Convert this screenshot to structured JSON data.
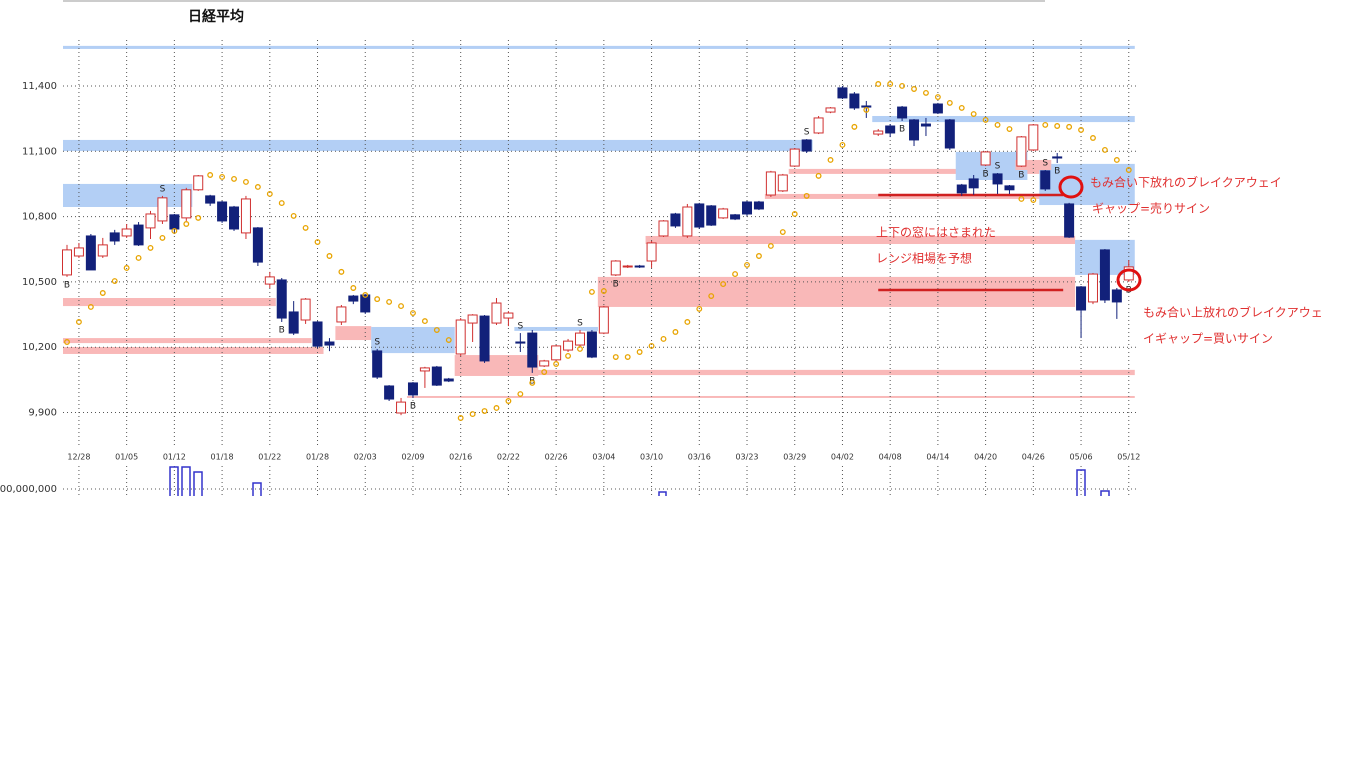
{
  "chart_data": {
    "type": "candlestick",
    "title": "日経平均",
    "categories": [
      null,
      "12/28",
      null,
      null,
      null,
      "01/05",
      null,
      null,
      null,
      "01/12",
      null,
      null,
      null,
      "01/18",
      null,
      null,
      null,
      "01/22",
      null,
      null,
      null,
      "01/28",
      null,
      null,
      null,
      "02/03",
      null,
      null,
      null,
      "02/09",
      null,
      null,
      null,
      "02/16",
      null,
      null,
      null,
      "02/22",
      null,
      null,
      null,
      "02/26",
      null,
      null,
      null,
      "03/04",
      null,
      null,
      null,
      "03/10",
      null,
      null,
      null,
      "03/16",
      null,
      null,
      null,
      "03/23",
      null,
      null,
      null,
      "03/29",
      null,
      null,
      null,
      "04/02",
      null,
      null,
      null,
      "04/08",
      null,
      null,
      null,
      "04/14",
      null,
      null,
      null,
      "04/20",
      null,
      null,
      null,
      "04/26",
      null,
      null,
      null,
      "05/06",
      null,
      null,
      null,
      "05/12"
    ],
    "open": [
      10532,
      10619,
      10711,
      10619,
      10725,
      10711,
      10761,
      10748,
      10780,
      10808,
      10794,
      10923,
      10895,
      10867,
      10844,
      10725,
      10748,
      10490,
      10509,
      10362,
      10325,
      10316,
      10224,
      10316,
      10435,
      10440,
      10183,
      10022,
      9898,
      10036,
      10091,
      10109,
      10054,
      10169,
      10311,
      10343,
      10311,
      10334,
      10224,
      10265,
      10114,
      10142,
      10187,
      10210,
      10270,
      10265,
      10532,
      10569,
      10573,
      10596,
      10711,
      10812,
      10711,
      10858,
      10849,
      10794,
      10808,
      10867,
      10867,
      10899,
      10918,
      11032,
      11152,
      11184,
      11280,
      11391,
      11363,
      11308,
      11179,
      11216,
      11303,
      11244,
      11225,
      11317,
      11244,
      10945,
      10973,
      11037,
      10996,
      10941,
      11032,
      11106,
      11010,
      11074,
      10858,
      10477,
      10408,
      10647,
      10463,
      10509
    ],
    "high": [
      10670,
      10679,
      10720,
      10702,
      10739,
      10766,
      10775,
      10826,
      10895,
      10812,
      10932,
      10991,
      10900,
      10872,
      10849,
      10895,
      10752,
      10546,
      10518,
      10412,
      10426,
      10320,
      10242,
      10394,
      10440,
      10444,
      10192,
      10026,
      9967,
      10040,
      10110,
      10114,
      10059,
      10334,
      10352,
      10348,
      10426,
      10366,
      10265,
      10279,
      10142,
      10210,
      10238,
      10279,
      10279,
      10390,
      10600,
      10578,
      10578,
      10688,
      10784,
      10817,
      10858,
      10863,
      10853,
      10840,
      10812,
      10872,
      10872,
      11010,
      10996,
      11115,
      11156,
      11262,
      11303,
      11400,
      11372,
      11331,
      11202,
      11225,
      11308,
      11248,
      11253,
      11322,
      11248,
      10950,
      10991,
      11101,
      11000,
      10945,
      11170,
      11225,
      11014,
      11092,
      10863,
      10481,
      10541,
      10651,
      10472,
      10600
    ],
    "low": [
      10523,
      10610,
      10555,
      10610,
      10670,
      10702,
      10665,
      10697,
      10766,
      10720,
      10780,
      10918,
      10849,
      10771,
      10734,
      10697,
      10573,
      10472,
      10316,
      10256,
      10307,
      10196,
      10182,
      10302,
      10398,
      10353,
      10054,
      9953,
      9888,
      9967,
      10013,
      10022,
      10040,
      10160,
      10224,
      10128,
      10302,
      10297,
      10178,
      10082,
      10109,
      10137,
      10178,
      10201,
      10150,
      10260,
      10527,
      10564,
      10564,
      10564,
      10706,
      10748,
      10702,
      10743,
      10757,
      10789,
      10784,
      10803,
      10830,
      10890,
      10913,
      11028,
      11092,
      11179,
      11275,
      11340,
      11290,
      11253,
      11170,
      11165,
      11239,
      11124,
      11170,
      11271,
      11106,
      10895,
      10900,
      11032,
      10904,
      10904,
      11028,
      11101,
      10918,
      11046,
      10702,
      10242,
      10398,
      10403,
      10330,
      10500
    ],
    "close": [
      10647,
      10656,
      10555,
      10670,
      10688,
      10743,
      10670,
      10812,
      10886,
      10743,
      10923,
      10987,
      10862,
      10780,
      10743,
      10881,
      10591,
      10523,
      10334,
      10265,
      10421,
      10205,
      10210,
      10385,
      10412,
      10362,
      10063,
      9962,
      9948,
      9981,
      10105,
      10026,
      10045,
      10325,
      10348,
      10137,
      10403,
      10357,
      10219,
      10109,
      10137,
      10206,
      10228,
      10265,
      10155,
      10385,
      10596,
      10573,
      10569,
      10679,
      10780,
      10757,
      10844,
      10752,
      10761,
      10835,
      10789,
      10812,
      10835,
      11005,
      10991,
      11110,
      11101,
      11253,
      11299,
      11345,
      11299,
      11303,
      11193,
      11184,
      11253,
      11152,
      11216,
      11276,
      11115,
      10909,
      10932,
      11097,
      10950,
      10923,
      11166,
      11221,
      10927,
      11069,
      10706,
      10371,
      10536,
      10417,
      10408,
      10569
    ],
    "sar_values": [
      10224,
      10316,
      10385,
      10449,
      10504,
      10564,
      10610,
      10656,
      10702,
      10734,
      10766,
      10794,
      10991,
      10982,
      10973,
      10959,
      10936,
      10904,
      10862,
      10803,
      10748,
      10683,
      10619,
      10546,
      10472,
      10440,
      10421,
      10408,
      10389,
      10357,
      10320,
      10279,
      10233,
      9875,
      9893,
      9907,
      9921,
      9953,
      9985,
      10036,
      10086,
      10123,
      10160,
      10192,
      10454,
      10458,
      10155,
      10155,
      10178,
      10206,
      10238,
      10270,
      10316,
      10376,
      10435,
      10490,
      10536,
      10578,
      10619,
      10665,
      10729,
      10812,
      10895,
      10987,
      11060,
      11129,
      11212,
      11290,
      11409,
      11409,
      11400,
      11386,
      11368,
      11349,
      11322,
      11299,
      11271,
      11244,
      11221,
      11202,
      10881,
      10876,
      11221,
      11216,
      11212,
      11198,
      11161,
      11106,
      11060,
      11014
    ],
    "signals": [
      "B",
      null,
      null,
      null,
      null,
      null,
      null,
      null,
      "S",
      null,
      null,
      null,
      null,
      null,
      null,
      null,
      null,
      null,
      "B",
      null,
      null,
      null,
      null,
      null,
      null,
      null,
      "S",
      null,
      null,
      "B",
      null,
      null,
      null,
      null,
      null,
      null,
      null,
      null,
      "S",
      "B",
      null,
      null,
      null,
      "S",
      null,
      null,
      "B",
      null,
      null,
      null,
      null,
      null,
      null,
      null,
      null,
      null,
      null,
      null,
      null,
      null,
      null,
      null,
      "S",
      null,
      null,
      null,
      null,
      null,
      null,
      null,
      "B",
      null,
      null,
      null,
      null,
      null,
      null,
      "B",
      "S",
      null,
      "B",
      null,
      "S",
      "B",
      null,
      null,
      null,
      null,
      null,
      "B"
    ],
    "up_color": "#d03030",
    "down_color": "#12217a",
    "sar_color": "#e8a400",
    "zones": [
      {
        "color": "#b3cff5",
        "start": 0,
        "end": 89,
        "low": 11570,
        "high": 11584
      },
      {
        "color": "#b3cff5",
        "start": 0,
        "end": 62,
        "low": 11101,
        "high": 11152
      },
      {
        "color": "#b3cff5",
        "start": 0,
        "end": 10,
        "low": 10844,
        "high": 10950
      },
      {
        "color": "#f9b8b8",
        "start": 0,
        "end": 17,
        "low": 10389,
        "high": 10426
      },
      {
        "color": "#f9b8b8",
        "start": 0,
        "end": 20,
        "low": 10219,
        "high": 10242
      },
      {
        "color": "#f9b8b8",
        "start": 0,
        "end": 21,
        "low": 10169,
        "high": 10201
      },
      {
        "color": "#f9b8b8",
        "start": 23,
        "end": 25,
        "low": 10233,
        "high": 10297
      },
      {
        "color": "#b3cff5",
        "start": 26,
        "end": 32,
        "low": 10173,
        "high": 10293
      },
      {
        "color": "#f9b8b8",
        "start": 33,
        "end": 39,
        "low": 10068,
        "high": 10164
      },
      {
        "color": "#b3cff5",
        "start": 38,
        "end": 44,
        "low": 10275,
        "high": 10293
      },
      {
        "color": "#f9b8b8",
        "start": 39,
        "end": 89,
        "low": 10072,
        "high": 10096
      },
      {
        "color": "#f9b8b8",
        "start": 29,
        "end": 89,
        "low": 9967,
        "high": 9976
      },
      {
        "color": "#f9b8b8",
        "start": 45,
        "end": 84,
        "low": 10385,
        "high": 10523
      },
      {
        "color": "#f9b8b8",
        "start": 49,
        "end": 84,
        "low": 10674,
        "high": 10711
      },
      {
        "color": "#f9b8b8",
        "start": 59,
        "end": 84,
        "low": 10881,
        "high": 10904
      },
      {
        "color": "#f9b8b8",
        "start": 61,
        "end": 82,
        "low": 10996,
        "high": 11019
      },
      {
        "color": "#b3cff5",
        "start": 68,
        "end": 89,
        "low": 11234,
        "high": 11262
      },
      {
        "color": "#b3cff5",
        "start": 75,
        "end": 80,
        "low": 10968,
        "high": 11097
      },
      {
        "color": "#b3cff5",
        "start": 82,
        "end": 89,
        "low": 10853,
        "high": 11042
      },
      {
        "color": "#f9b8b8",
        "start": 80,
        "end": 82,
        "low": 11014,
        "high": 11060
      },
      {
        "color": "#b3cff5",
        "start": 85,
        "end": 89,
        "low": 10532,
        "high": 10693
      }
    ],
    "lines": [
      {
        "color": "#d02020",
        "start": 68,
        "end": 83,
        "value": 10899
      },
      {
        "color": "#d02020",
        "start": 68,
        "end": 83,
        "value": 10463
      }
    ],
    "annotations": [
      "もみ合い下放れのブレイクアウェイ",
      "ギャップ=売りサイン",
      "上下の窓にはさまれた",
      "レンジ相場を予想",
      "もみ合い上放れのブレイクアウェ",
      "イギャップ=買いサイン"
    ],
    "volume_axis_label": "00,000,000",
    "ylim": [
      9705,
      11611
    ],
    "yticks": [
      {
        "value": 9900,
        "label": "9,900"
      },
      {
        "value": 10200,
        "label": "10,200"
      },
      {
        "value": 10500,
        "label": "10,500"
      },
      {
        "value": 10800,
        "label": "10,800"
      },
      {
        "value": 11100,
        "label": "11,100"
      },
      {
        "value": 11400,
        "label": "11,400"
      }
    ],
    "grid": true
  }
}
